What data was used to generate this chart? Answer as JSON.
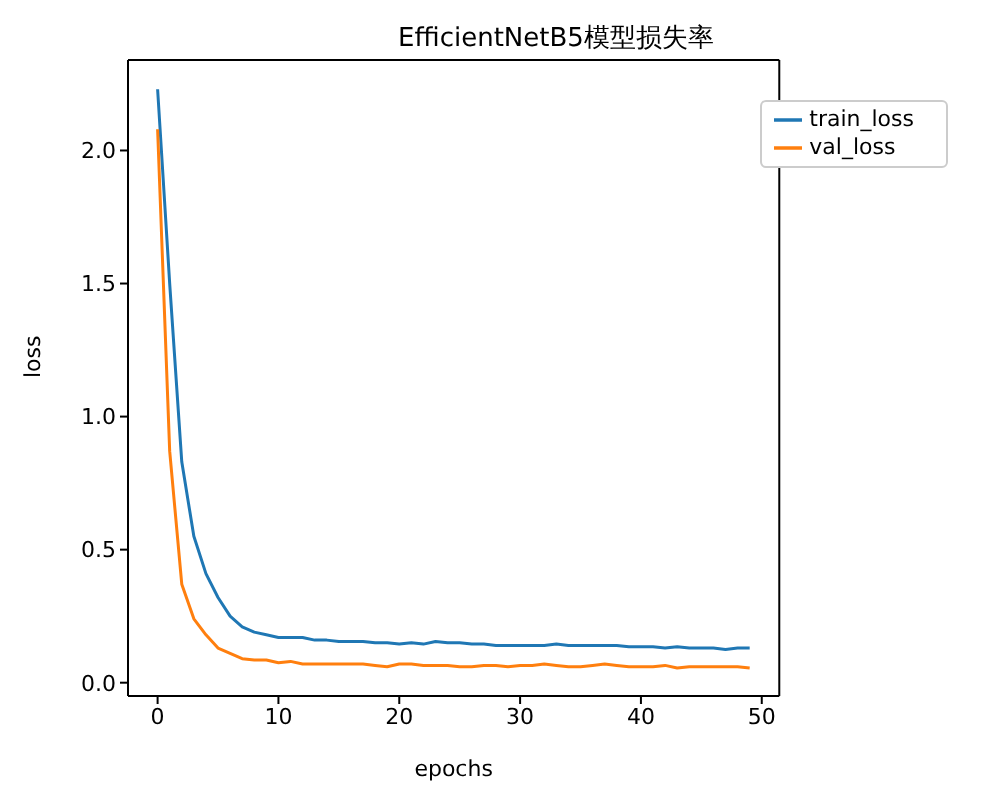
{
  "chart_data": {
    "type": "line",
    "title": "EfficientNetB5模型损失率",
    "xlabel": "epochs",
    "ylabel": "loss",
    "x": [
      0,
      1,
      2,
      3,
      4,
      5,
      6,
      7,
      8,
      9,
      10,
      11,
      12,
      13,
      14,
      15,
      16,
      17,
      18,
      19,
      20,
      21,
      22,
      23,
      24,
      25,
      26,
      27,
      28,
      29,
      30,
      31,
      32,
      33,
      34,
      35,
      36,
      37,
      38,
      39,
      40,
      41,
      42,
      43,
      44,
      45,
      46,
      47,
      48,
      49
    ],
    "series": [
      {
        "name": "train_loss",
        "color": "#1f77b4",
        "values": [
          2.23,
          1.5,
          0.83,
          0.55,
          0.41,
          0.32,
          0.25,
          0.21,
          0.19,
          0.18,
          0.17,
          0.17,
          0.17,
          0.16,
          0.16,
          0.155,
          0.155,
          0.155,
          0.15,
          0.15,
          0.145,
          0.15,
          0.145,
          0.155,
          0.15,
          0.15,
          0.145,
          0.145,
          0.14,
          0.14,
          0.14,
          0.14,
          0.14,
          0.145,
          0.14,
          0.14,
          0.14,
          0.14,
          0.14,
          0.135,
          0.135,
          0.135,
          0.13,
          0.135,
          0.13,
          0.13,
          0.13,
          0.125,
          0.13,
          0.13
        ]
      },
      {
        "name": "val_loss",
        "color": "#ff7f0e",
        "values": [
          2.08,
          0.87,
          0.37,
          0.24,
          0.18,
          0.13,
          0.11,
          0.09,
          0.085,
          0.085,
          0.075,
          0.08,
          0.07,
          0.07,
          0.07,
          0.07,
          0.07,
          0.07,
          0.065,
          0.06,
          0.07,
          0.07,
          0.065,
          0.065,
          0.065,
          0.06,
          0.06,
          0.065,
          0.065,
          0.06,
          0.065,
          0.065,
          0.07,
          0.065,
          0.06,
          0.06,
          0.065,
          0.07,
          0.065,
          0.06,
          0.06,
          0.06,
          0.065,
          0.055,
          0.06,
          0.06,
          0.06,
          0.06,
          0.06,
          0.055
        ]
      }
    ],
    "xlim": [
      -2.45,
      51.45
    ],
    "xticks": [
      0,
      10,
      20,
      30,
      40,
      50
    ],
    "ylim": [
      -0.05,
      2.34
    ],
    "yticks": [
      {
        "value": 0,
        "label": "0.0"
      },
      {
        "value": 0.5,
        "label": "0.5"
      },
      {
        "value": 1,
        "label": "1.0"
      },
      {
        "value": 1.5,
        "label": "1.5"
      },
      {
        "value": 2,
        "label": "2.0"
      }
    ],
    "grid": false,
    "legend": "top right",
    "marker": "none",
    "line_style": "solid"
  }
}
